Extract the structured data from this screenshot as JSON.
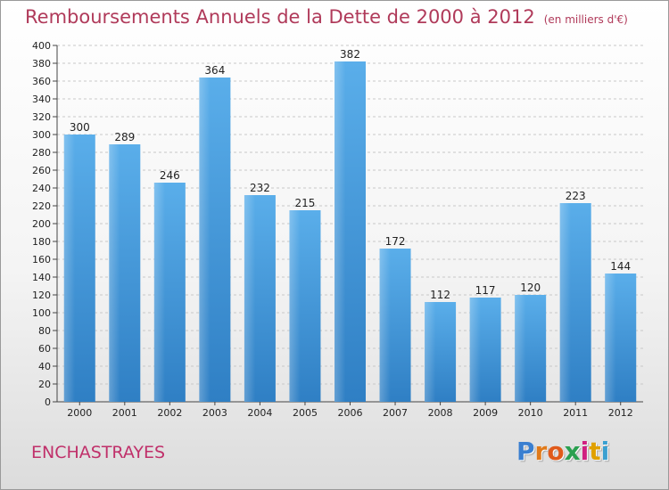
{
  "chart_data": {
    "type": "bar",
    "title": "Remboursements Annuels de la Dette de 2000 à 2012",
    "subtitle": "(en milliers d'€)",
    "categories": [
      "2000",
      "2001",
      "2002",
      "2003",
      "2004",
      "2005",
      "2006",
      "2007",
      "2008",
      "2009",
      "2010",
      "2011",
      "2012"
    ],
    "values": [
      300,
      289,
      246,
      364,
      232,
      215,
      382,
      172,
      112,
      117,
      120,
      223,
      144
    ],
    "ylim": [
      0,
      400
    ],
    "ytick_step": 20,
    "grid": true,
    "bar_color": "#4a9fe0"
  },
  "commune": "ENCHASTRAYES",
  "logo": {
    "letters": [
      "P",
      "r",
      "o",
      "x",
      "i",
      "t",
      "i"
    ],
    "colors": [
      "#3a7fd0",
      "#e07a1a",
      "#e05a1a",
      "#2aa050",
      "#d02080",
      "#e0a000",
      "#3aa0d0"
    ]
  }
}
